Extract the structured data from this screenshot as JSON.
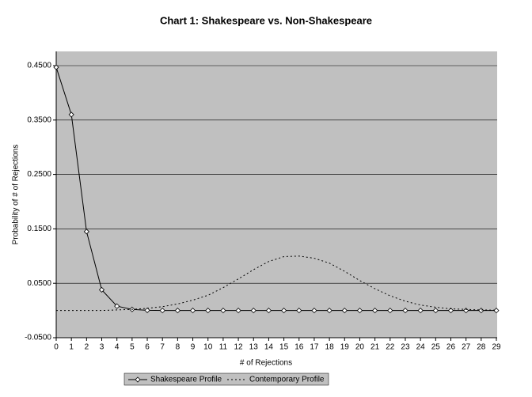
{
  "chart_data": {
    "type": "line",
    "title": "Chart 1: Shakespeare vs. Non-Shakespeare",
    "x_label": "# of Rejections",
    "y_label": "Probability of # of Rejections",
    "x": [
      0,
      1,
      2,
      3,
      4,
      5,
      6,
      7,
      8,
      9,
      10,
      11,
      12,
      13,
      14,
      15,
      16,
      17,
      18,
      19,
      20,
      21,
      22,
      23,
      24,
      25,
      26,
      27,
      28,
      29
    ],
    "xlim": [
      0,
      29
    ],
    "xticks": [
      0,
      1,
      2,
      3,
      4,
      5,
      6,
      7,
      8,
      9,
      10,
      11,
      12,
      13,
      14,
      15,
      16,
      17,
      18,
      19,
      20,
      21,
      22,
      23,
      24,
      25,
      26,
      27,
      28,
      29
    ],
    "ylim": [
      -0.05,
      0.45
    ],
    "yticks": [
      {
        "value": -0.05,
        "label": "-0.0500"
      },
      {
        "value": 0.05,
        "label": "0.0500"
      },
      {
        "value": 0.15,
        "label": "0.1500"
      },
      {
        "value": 0.25,
        "label": "0.2500"
      },
      {
        "value": 0.35,
        "label": "0.3500"
      },
      {
        "value": 0.45,
        "label": "0.4500"
      }
    ],
    "grid": true,
    "legend": "bottom",
    "series": [
      {
        "name": "Shakespeare Profile",
        "color": "#000000",
        "style": "solid",
        "marker": "diamond",
        "values": [
          0.447,
          0.36,
          0.145,
          0.038,
          0.008,
          0.002,
          0.0003,
          0,
          0,
          0,
          0,
          0,
          0,
          0,
          0,
          0,
          0,
          0,
          0,
          0,
          0,
          0,
          0,
          0,
          0,
          0,
          0,
          0,
          0,
          0
        ]
      },
      {
        "name": "Contemporary Profile",
        "color": "#000000",
        "style": "dotted",
        "marker": "none",
        "values": [
          0,
          0,
          0,
          0,
          0.001,
          0.002,
          0.004,
          0.007,
          0.012,
          0.019,
          0.028,
          0.042,
          0.058,
          0.075,
          0.09,
          0.099,
          0.1,
          0.096,
          0.087,
          0.072,
          0.055,
          0.04,
          0.027,
          0.017,
          0.01,
          0.006,
          0.003,
          0.002,
          0.001,
          0.0005
        ]
      }
    ]
  }
}
